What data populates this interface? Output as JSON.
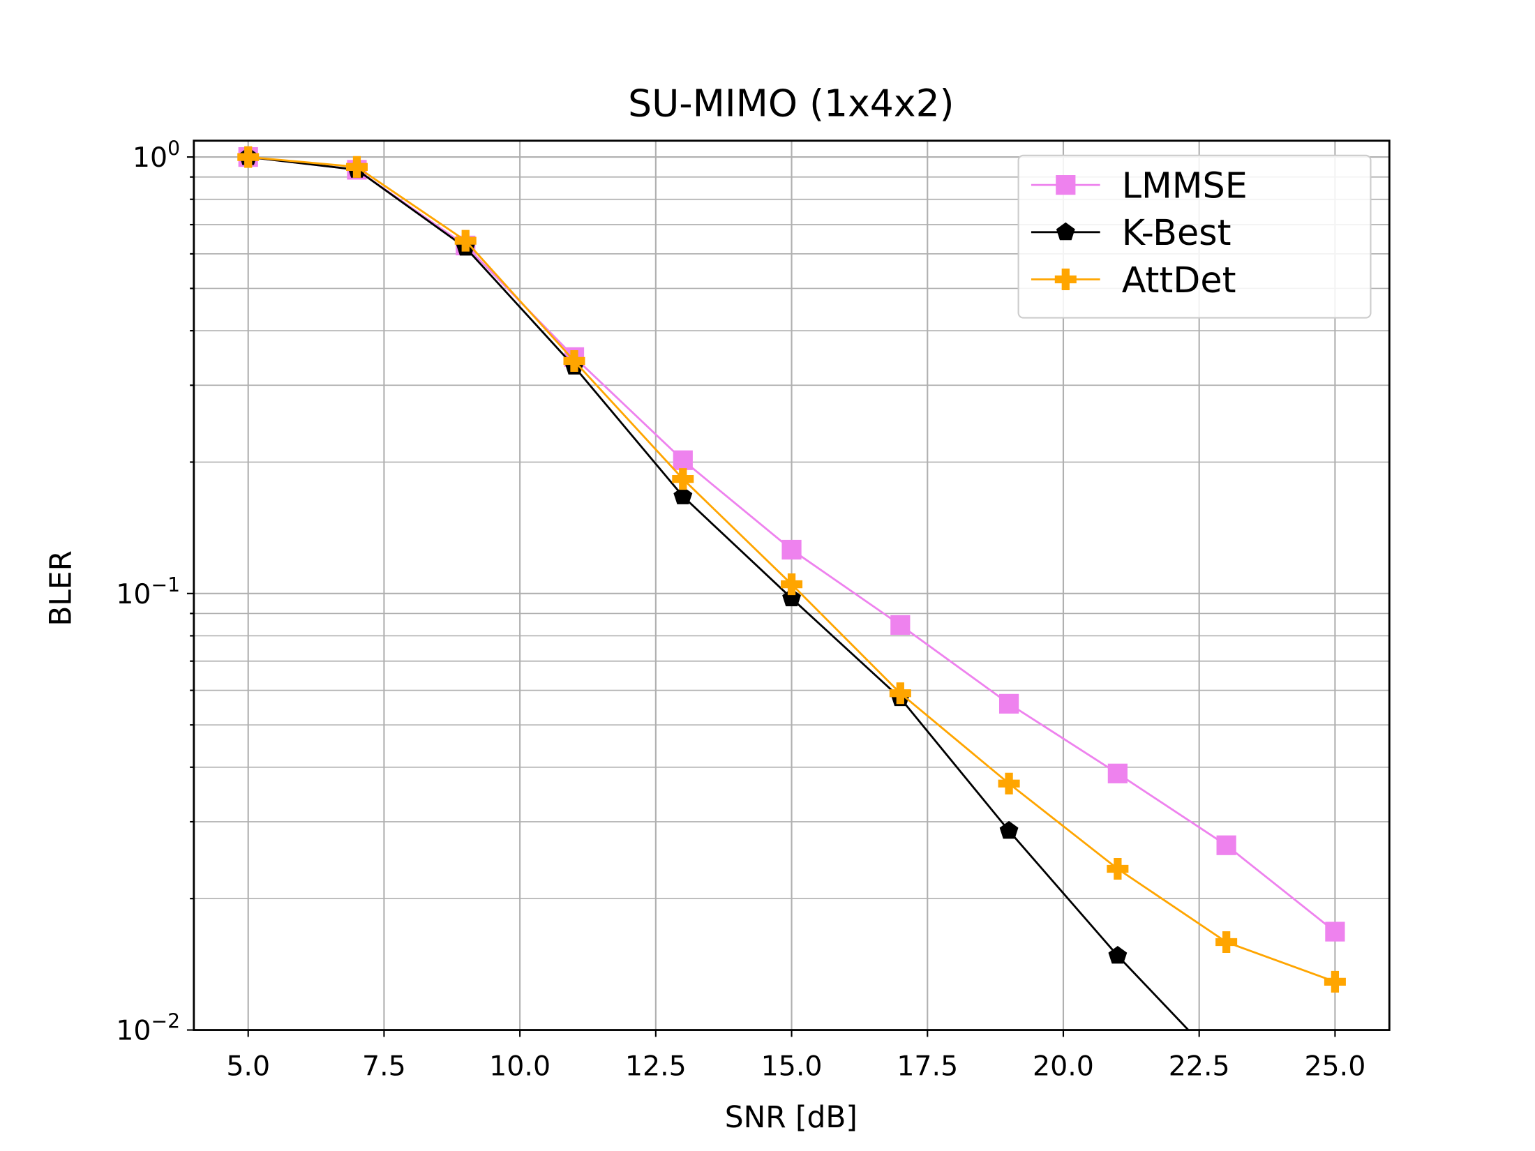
{
  "chart_data": {
    "type": "line",
    "title": "SU-MIMO (1x4x2)",
    "xlabel": "SNR [dB]",
    "ylabel": "BLER",
    "xlim": [
      4.0,
      26.0
    ],
    "ylim": [
      0.01,
      1.09
    ],
    "yscale": "log",
    "grid": true,
    "legend_position": "top-right",
    "xticks": [
      "5.0",
      "7.5",
      "10.0",
      "12.5",
      "15.0",
      "17.5",
      "20.0",
      "22.5",
      "25.0"
    ],
    "yticks": [
      {
        "base": "10",
        "exp": "0"
      },
      {
        "base": "10",
        "exp": "−1"
      },
      {
        "base": "10",
        "exp": "−2"
      }
    ],
    "x": [
      5,
      7,
      9,
      11,
      13,
      15,
      17,
      19,
      21,
      23,
      25
    ],
    "series": [
      {
        "name": "LMMSE",
        "color": "#ee82ee",
        "marker": "square",
        "values": [
          1.0,
          0.935,
          0.627,
          0.348,
          0.202,
          0.126,
          0.0847,
          0.0559,
          0.0387,
          0.0265,
          0.0168
        ]
      },
      {
        "name": "K-Best",
        "color": "#000000",
        "marker": "pentagon",
        "values": [
          1.0,
          0.935,
          0.62,
          0.331,
          0.167,
          0.0975,
          0.0576,
          0.0286,
          0.0148,
          0.0081,
          null
        ]
      },
      {
        "name": "AttDet",
        "color": "#ffa500",
        "marker": "plus",
        "values": [
          1.0,
          0.949,
          0.643,
          0.341,
          0.183,
          0.105,
          0.0591,
          0.0367,
          0.0234,
          0.0159,
          0.0129
        ]
      }
    ]
  }
}
